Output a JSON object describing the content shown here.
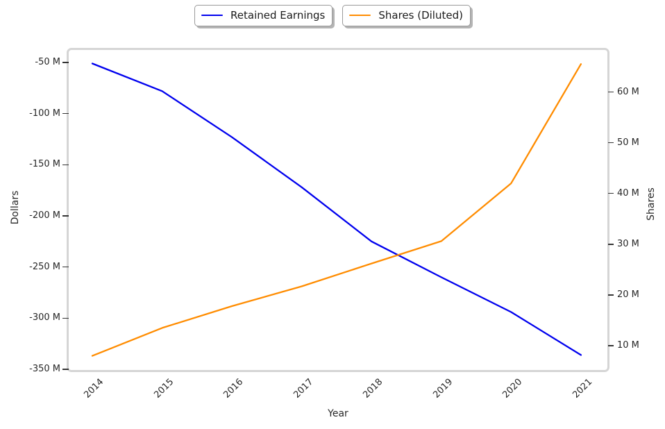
{
  "legend": {
    "items": [
      {
        "label": "Retained Earnings",
        "color": "#0000ee"
      },
      {
        "label": "Shares (Diluted)",
        "color": "#ff8c00"
      }
    ]
  },
  "chart_data": {
    "type": "line",
    "title": "",
    "xlabel": "Year",
    "x": [
      2014,
      2015,
      2016,
      2017,
      2018,
      2019,
      2020,
      2021
    ],
    "x_tick_labels": [
      "2014",
      "2015",
      "2016",
      "2017",
      "2018",
      "2019",
      "2020",
      "2021"
    ],
    "series": [
      {
        "name": "Retained Earnings",
        "axis": "left",
        "color": "#0000ee",
        "unit": "USD millions",
        "values": [
          -51,
          -78,
          -123,
          -172,
          -225,
          -260,
          -294,
          -336
        ]
      },
      {
        "name": "Shares (Diluted)",
        "axis": "right",
        "color": "#ff8c00",
        "unit": "millions of shares",
        "values": [
          8,
          13.5,
          17.8,
          21.7,
          26.2,
          30.6,
          42,
          65.5
        ]
      }
    ],
    "left_axis": {
      "label": "Dollars",
      "tick_labels": [
        "-50 M",
        "-100 M",
        "-150 M",
        "-200 M",
        "-250 M",
        "-300 M",
        "-350 M"
      ],
      "tick_values": [
        -50,
        -100,
        -150,
        -200,
        -250,
        -300,
        -350
      ],
      "range": [
        -362,
        -48
      ]
    },
    "right_axis": {
      "label": "Shares",
      "tick_labels": [
        "60 M",
        "50 M",
        "40 M",
        "30 M",
        "20 M",
        "10 M"
      ],
      "tick_values": [
        60,
        50,
        40,
        30,
        20,
        10
      ],
      "range": [
        5,
        68
      ]
    },
    "grid": false,
    "legend_position": "top-center"
  }
}
